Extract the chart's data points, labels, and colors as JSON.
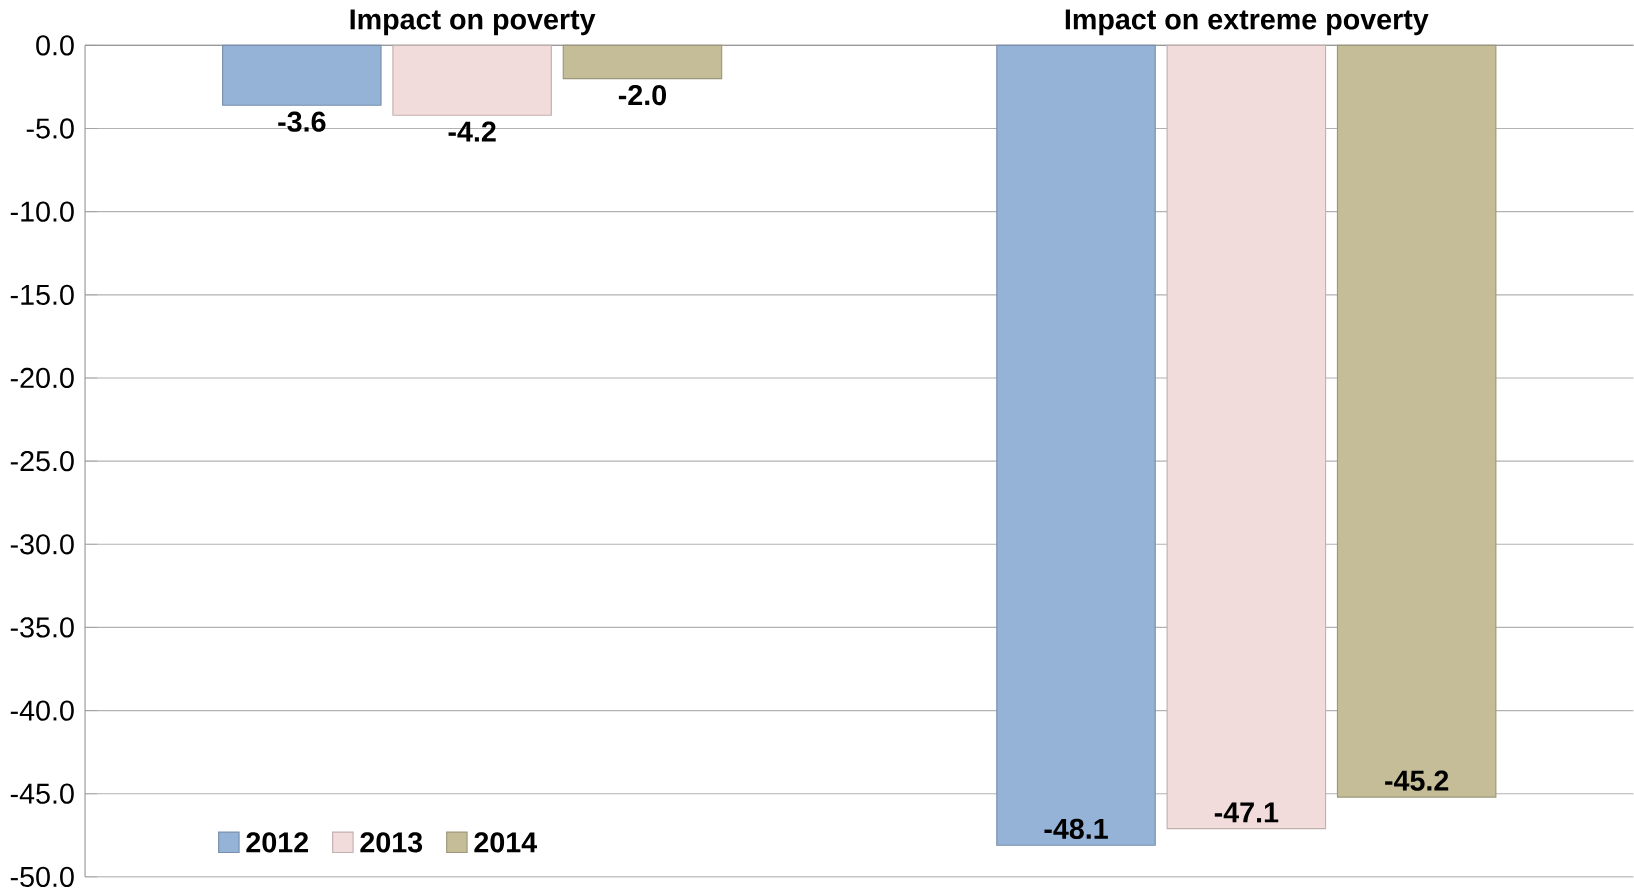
{
  "chart_data": {
    "type": "bar",
    "categories": [
      "Impact on poverty",
      "Impact on extreme poverty"
    ],
    "series": [
      {
        "name": "2012",
        "color": "#95b3d7",
        "values": [
          -3.6,
          -48.1
        ],
        "value_labels": [
          "-3.6",
          "-48.1"
        ]
      },
      {
        "name": "2013",
        "color": "#f2dcdb",
        "values": [
          -4.2,
          -47.1
        ],
        "value_labels": [
          "-4.2",
          "-47.1"
        ]
      },
      {
        "name": "2014",
        "color": "#c4bd97",
        "values": [
          -2.0,
          -45.2
        ],
        "value_labels": [
          "-2.0",
          "-45.2"
        ]
      }
    ],
    "ylim": [
      -50,
      0
    ],
    "yticks": [
      {
        "value": 0,
        "label": "0.0"
      },
      {
        "value": -5,
        "label": "-5.0"
      },
      {
        "value": -10,
        "label": "-10.0"
      },
      {
        "value": -15,
        "label": "-15.0"
      },
      {
        "value": -20,
        "label": "-20.0"
      },
      {
        "value": -25,
        "label": "-25.0"
      },
      {
        "value": -30,
        "label": "-30.0"
      },
      {
        "value": -35,
        "label": "-35.0"
      },
      {
        "value": -40,
        "label": "-40.0"
      },
      {
        "value": -45,
        "label": "-45.0"
      },
      {
        "value": -50,
        "label": "-50.0"
      }
    ],
    "grid": "y",
    "legend": "bottom left"
  }
}
